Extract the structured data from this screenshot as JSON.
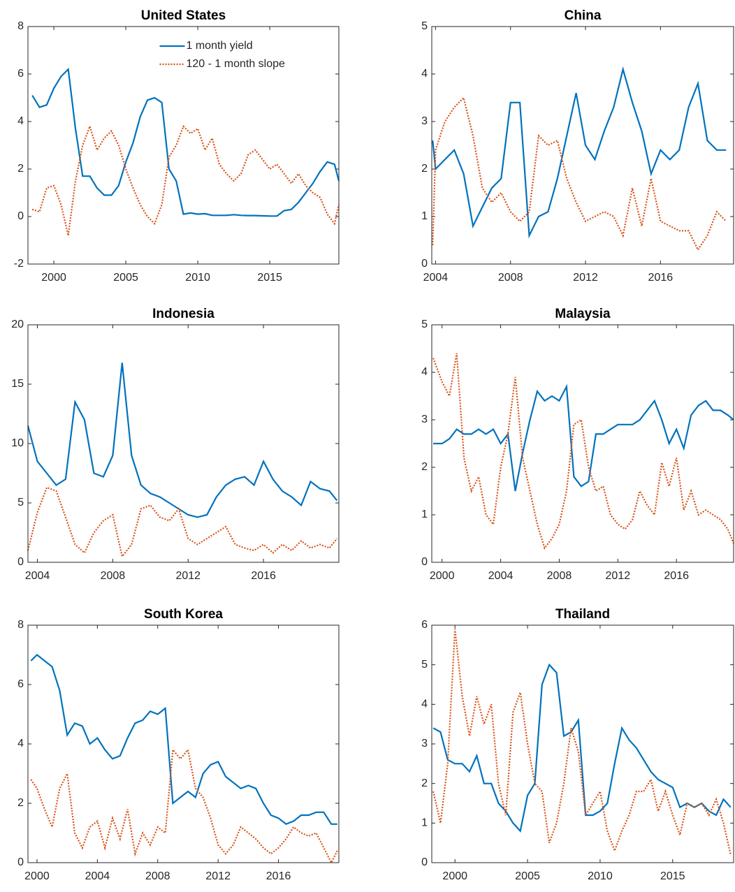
{
  "chart_data": [
    {
      "type": "line",
      "title": "United States",
      "legend": "upper center",
      "xlim": [
        1998.2,
        2019.8
      ],
      "xticks": [
        2000,
        2005,
        2010,
        2015
      ],
      "ylim": [
        -2,
        8
      ],
      "yticks": [
        -2,
        0,
        2,
        4,
        6,
        8
      ],
      "x": [
        1998.5,
        1999,
        1999.5,
        2000,
        2000.5,
        2001,
        2001.5,
        2002,
        2002.5,
        2003,
        2003.5,
        2004,
        2004.5,
        2005,
        2005.5,
        2006,
        2006.5,
        2007,
        2007.5,
        2008,
        2008.5,
        2009,
        2009.5,
        2010,
        2010.5,
        2011,
        2011.5,
        2012,
        2012.5,
        2013,
        2013.5,
        2014,
        2014.5,
        2015,
        2015.5,
        2016,
        2016.5,
        2017,
        2017.5,
        2018,
        2018.5,
        2019,
        2019.5,
        2019.8
      ],
      "series": [
        {
          "name": "1 month yield",
          "color": "#0072bd",
          "style": "solid",
          "values": [
            5.1,
            4.6,
            4.7,
            5.4,
            5.9,
            6.2,
            3.7,
            1.7,
            1.7,
            1.2,
            0.9,
            0.9,
            1.3,
            2.3,
            3.1,
            4.2,
            4.9,
            5.0,
            4.8,
            2.0,
            1.5,
            0.1,
            0.15,
            0.1,
            0.12,
            0.05,
            0.05,
            0.05,
            0.08,
            0.05,
            0.04,
            0.04,
            0.03,
            0.02,
            0.02,
            0.25,
            0.3,
            0.6,
            1.0,
            1.4,
            1.9,
            2.3,
            2.2,
            1.5
          ]
        },
        {
          "name": "120 - 1 month slope",
          "color": "#d95319",
          "style": "dotted",
          "values": [
            0.3,
            0.2,
            1.2,
            1.3,
            0.5,
            -0.8,
            1.5,
            3.0,
            3.8,
            2.8,
            3.3,
            3.6,
            3.0,
            2.0,
            1.2,
            0.5,
            0.0,
            -0.3,
            0.5,
            2.5,
            3.0,
            3.8,
            3.5,
            3.7,
            2.8,
            3.3,
            2.2,
            1.8,
            1.5,
            1.8,
            2.6,
            2.8,
            2.4,
            2.0,
            2.2,
            1.8,
            1.4,
            1.8,
            1.3,
            1.0,
            0.8,
            0.1,
            -0.3,
            0.5
          ]
        }
      ]
    },
    {
      "type": "line",
      "title": "China",
      "xlim": [
        2003.8,
        2019.9
      ],
      "xticks": [
        2004,
        2008,
        2012,
        2016
      ],
      "ylim": [
        0,
        5
      ],
      "yticks": [
        0,
        1,
        2,
        3,
        4,
        5
      ],
      "x": [
        2003.85,
        2004,
        2004.5,
        2005,
        2005.5,
        2006,
        2006.5,
        2007,
        2007.5,
        2008,
        2008.5,
        2009,
        2009.5,
        2010,
        2010.5,
        2011,
        2011.5,
        2012,
        2012.5,
        2013,
        2013.5,
        2014,
        2014.5,
        2015,
        2015.5,
        2016,
        2016.5,
        2017,
        2017.5,
        2018,
        2018.5,
        2019,
        2019.5
      ],
      "series": [
        {
          "color": "#0072bd",
          "style": "solid",
          "values": [
            2.6,
            2.0,
            2.2,
            2.4,
            1.9,
            0.8,
            1.2,
            1.6,
            1.8,
            3.4,
            3.4,
            0.6,
            1.0,
            1.1,
            1.8,
            2.7,
            3.6,
            2.5,
            2.2,
            2.8,
            3.3,
            4.1,
            3.4,
            2.8,
            1.9,
            2.4,
            2.2,
            2.4,
            3.3,
            3.8,
            2.6,
            2.4,
            2.4
          ]
        },
        {
          "color": "#d95319",
          "style": "dotted",
          "values": [
            0.4,
            2.4,
            3.0,
            3.3,
            3.5,
            2.7,
            1.6,
            1.3,
            1.5,
            1.1,
            0.9,
            1.1,
            2.7,
            2.5,
            2.6,
            1.8,
            1.3,
            0.9,
            1.0,
            1.1,
            1.0,
            0.6,
            1.6,
            0.8,
            1.8,
            0.9,
            0.8,
            0.7,
            0.7,
            0.3,
            0.6,
            1.1,
            0.9
          ]
        }
      ]
    },
    {
      "type": "line",
      "title": "Indonesia",
      "xlim": [
        2003.5,
        2020
      ],
      "xticks": [
        2004,
        2008,
        2012,
        2016
      ],
      "ylim": [
        0,
        20
      ],
      "yticks": [
        0,
        5,
        10,
        15,
        20
      ],
      "x": [
        2003.5,
        2004,
        2004.5,
        2005,
        2005.5,
        2006,
        2006.5,
        2007,
        2007.5,
        2008,
        2008.5,
        2009,
        2009.5,
        2010,
        2010.5,
        2011,
        2011.5,
        2012,
        2012.5,
        2013,
        2013.5,
        2014,
        2014.5,
        2015,
        2015.5,
        2016,
        2016.5,
        2017,
        2017.5,
        2018,
        2018.5,
        2019,
        2019.5,
        2019.9
      ],
      "series": [
        {
          "color": "#0072bd",
          "style": "solid",
          "values": [
            11.5,
            8.5,
            7.5,
            6.5,
            7.0,
            13.5,
            12.0,
            7.5,
            7.2,
            9.0,
            16.8,
            9.0,
            6.5,
            5.8,
            5.5,
            5.0,
            4.5,
            4.0,
            3.8,
            4.0,
            5.5,
            6.5,
            7.0,
            7.2,
            6.5,
            8.5,
            7.0,
            6.0,
            5.5,
            4.8,
            6.8,
            6.2,
            6.0,
            5.2
          ]
        },
        {
          "color": "#d95319",
          "style": "dotted",
          "values": [
            1.0,
            4.2,
            6.3,
            6.0,
            3.8,
            1.5,
            0.8,
            2.5,
            3.5,
            4.0,
            0.5,
            1.5,
            4.5,
            4.8,
            3.8,
            3.5,
            4.5,
            2.0,
            1.5,
            2.0,
            2.5,
            3.0,
            1.5,
            1.2,
            1.0,
            1.5,
            0.8,
            1.5,
            1.0,
            1.8,
            1.2,
            1.5,
            1.2,
            2.0
          ]
        }
      ]
    },
    {
      "type": "line",
      "title": "Malaysia",
      "xlim": [
        1999.3,
        2019.9
      ],
      "xticks": [
        2000,
        2004,
        2008,
        2012,
        2016
      ],
      "ylim": [
        0,
        5
      ],
      "yticks": [
        0,
        1,
        2,
        3,
        4,
        5
      ],
      "x": [
        1999.4,
        2000,
        2000.5,
        2001,
        2001.5,
        2002,
        2002.5,
        2003,
        2003.5,
        2004,
        2004.5,
        2005,
        2005.5,
        2006,
        2006.5,
        2007,
        2007.5,
        2008,
        2008.5,
        2009,
        2009.5,
        2010,
        2010.5,
        2011,
        2011.5,
        2012,
        2012.5,
        2013,
        2013.5,
        2014,
        2014.5,
        2015,
        2015.5,
        2016,
        2016.5,
        2017,
        2017.5,
        2018,
        2018.5,
        2019,
        2019.5,
        2019.9
      ],
      "series": [
        {
          "color": "#0072bd",
          "style": "solid",
          "values": [
            2.5,
            2.5,
            2.6,
            2.8,
            2.7,
            2.7,
            2.8,
            2.7,
            2.8,
            2.5,
            2.7,
            1.5,
            2.3,
            3.0,
            3.6,
            3.4,
            3.5,
            3.4,
            3.7,
            1.8,
            1.6,
            1.7,
            2.7,
            2.7,
            2.8,
            2.9,
            2.9,
            2.9,
            3.0,
            3.2,
            3.4,
            3.0,
            2.5,
            2.8,
            2.4,
            3.1,
            3.3,
            3.4,
            3.2,
            3.2,
            3.1,
            3.0
          ]
        },
        {
          "color": "#d95319",
          "style": "dotted",
          "values": [
            4.3,
            3.8,
            3.5,
            4.4,
            2.2,
            1.5,
            1.8,
            1.0,
            0.8,
            2.0,
            2.7,
            3.9,
            2.2,
            1.5,
            0.8,
            0.3,
            0.5,
            0.8,
            1.5,
            2.9,
            3.0,
            2.0,
            1.5,
            1.6,
            1.0,
            0.8,
            0.7,
            0.9,
            1.5,
            1.2,
            1.0,
            2.1,
            1.6,
            2.2,
            1.1,
            1.5,
            1.0,
            1.1,
            1.0,
            0.9,
            0.7,
            0.4
          ]
        }
      ]
    },
    {
      "type": "line",
      "title": "South Korea",
      "xlim": [
        1999.4,
        2020.0
      ],
      "xticks": [
        2000,
        2004,
        2008,
        2012,
        2016
      ],
      "ylim": [
        0,
        8
      ],
      "yticks": [
        0,
        2,
        4,
        6,
        8
      ],
      "x": [
        1999.6,
        2000,
        2000.5,
        2001,
        2001.5,
        2002,
        2002.5,
        2003,
        2003.5,
        2004,
        2004.5,
        2005,
        2005.5,
        2006,
        2006.5,
        2007,
        2007.5,
        2008,
        2008.5,
        2009,
        2009.5,
        2010,
        2010.5,
        2011,
        2011.5,
        2012,
        2012.5,
        2013,
        2013.5,
        2014,
        2014.5,
        2015,
        2015.5,
        2016,
        2016.5,
        2017,
        2017.5,
        2018,
        2018.5,
        2019,
        2019.5,
        2019.9
      ],
      "series": [
        {
          "color": "#0072bd",
          "style": "solid",
          "values": [
            6.8,
            7.0,
            6.8,
            6.6,
            5.8,
            4.3,
            4.7,
            4.6,
            4.0,
            4.2,
            3.8,
            3.5,
            3.6,
            4.2,
            4.7,
            4.8,
            5.1,
            5.0,
            5.2,
            2.0,
            2.2,
            2.4,
            2.2,
            3.0,
            3.3,
            3.4,
            2.9,
            2.7,
            2.5,
            2.6,
            2.5,
            2.0,
            1.6,
            1.5,
            1.3,
            1.4,
            1.6,
            1.6,
            1.7,
            1.7,
            1.3,
            1.3
          ]
        },
        {
          "color": "#d95319",
          "style": "dotted",
          "values": [
            2.8,
            2.5,
            1.8,
            1.2,
            2.5,
            3.0,
            1.0,
            0.5,
            1.2,
            1.4,
            0.5,
            1.5,
            0.8,
            1.8,
            0.3,
            1.0,
            0.6,
            1.2,
            1.0,
            3.8,
            3.5,
            3.8,
            2.5,
            2.2,
            1.5,
            0.6,
            0.3,
            0.6,
            1.2,
            1.0,
            0.8,
            0.5,
            0.3,
            0.5,
            0.8,
            1.2,
            1.0,
            0.9,
            1.0,
            0.5,
            0.0,
            0.4
          ]
        }
      ]
    },
    {
      "type": "line",
      "title": "Thailand",
      "xlim": [
        1998.4,
        2019.2
      ],
      "xticks": [
        2000,
        2005,
        2010,
        2015
      ],
      "ylim": [
        0,
        6
      ],
      "yticks": [
        0,
        1,
        2,
        3,
        4,
        5,
        6
      ],
      "x": [
        1998.5,
        1999,
        1999.5,
        2000,
        2000.5,
        2001,
        2001.5,
        2002,
        2002.5,
        2003,
        2003.5,
        2004,
        2004.5,
        2005,
        2005.5,
        2006,
        2006.5,
        2007,
        2007.5,
        2008,
        2008.5,
        2009,
        2009.5,
        2010,
        2010.5,
        2011,
        2011.5,
        2012,
        2012.5,
        2013,
        2013.5,
        2014,
        2014.5,
        2015,
        2015.5,
        2016,
        2016.5,
        2017,
        2017.5,
        2018,
        2018.5,
        2019
      ],
      "series": [
        {
          "color": "#0072bd",
          "style": "solid",
          "values": [
            3.4,
            3.3,
            2.6,
            2.5,
            2.5,
            2.3,
            2.7,
            2.0,
            2.0,
            1.5,
            1.3,
            1.0,
            0.8,
            1.7,
            2.0,
            4.5,
            5.0,
            4.8,
            3.2,
            3.3,
            3.6,
            1.2,
            1.2,
            1.3,
            1.5,
            2.5,
            3.4,
            3.1,
            2.9,
            2.6,
            2.3,
            2.1,
            2.0,
            1.9,
            1.4,
            1.5,
            1.4,
            1.5,
            1.3,
            1.2,
            1.6,
            1.4
          ]
        },
        {
          "color": "#d95319",
          "style": "dotted",
          "values": [
            1.8,
            1.0,
            2.5,
            5.9,
            4.2,
            3.2,
            4.2,
            3.5,
            4.0,
            2.0,
            1.2,
            3.8,
            4.3,
            3.0,
            2.0,
            1.8,
            0.5,
            1.0,
            2.0,
            3.4,
            2.8,
            1.2,
            1.5,
            1.8,
            0.8,
            0.3,
            0.8,
            1.2,
            1.8,
            1.8,
            2.1,
            1.3,
            1.8,
            1.2,
            0.7,
            1.5,
            1.4,
            1.5,
            1.2,
            1.6,
            1.0,
            0.2
          ]
        }
      ]
    }
  ]
}
